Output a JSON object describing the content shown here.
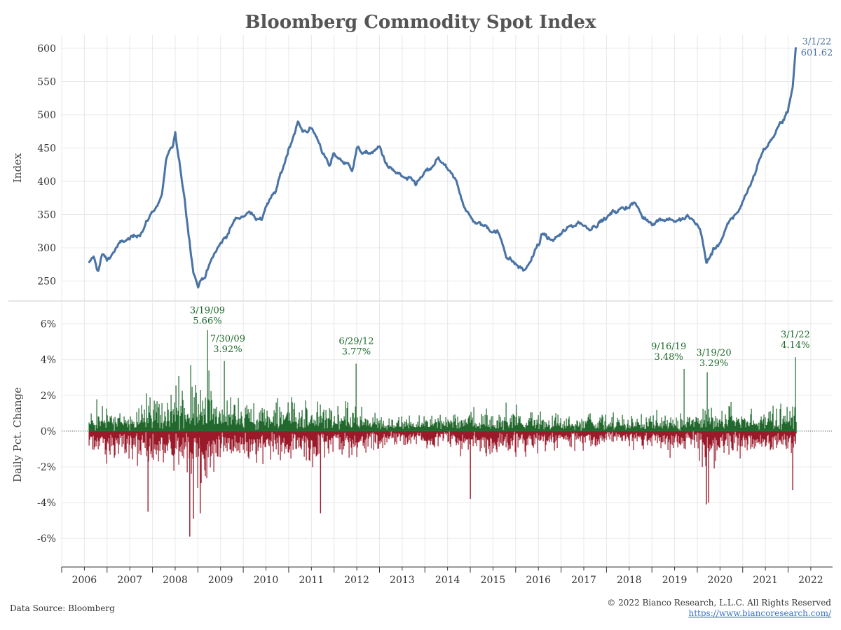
{
  "title": "Bloomberg Commodity Spot Index",
  "colors": {
    "line": "#4a73a5",
    "up": "#1e6a2c",
    "down": "#9b1a2a",
    "annotation": "#1e6a2c"
  },
  "footer": {
    "source": "Data Source: Bloomberg",
    "copyright": "© 2022 Bianco Research, L.L.C. All Rights Reserved",
    "url": "https://www.biancoresearch.com/"
  },
  "chart_data": [
    {
      "type": "line",
      "name": "index-panel",
      "ylabel": "Index",
      "ylim": [
        220,
        620
      ],
      "yticks": [
        250,
        300,
        350,
        400,
        450,
        500,
        550,
        600
      ],
      "series": [
        {
          "name": "Bloomberg Commodity Spot Index",
          "x": [
            2006.6,
            2006.7,
            2006.8,
            2006.9,
            2007.0,
            2007.2,
            2007.4,
            2007.6,
            2007.8,
            2008.0,
            2008.2,
            2008.3,
            2008.45,
            2008.5,
            2008.6,
            2008.7,
            2008.8,
            2008.9,
            2009.0,
            2009.1,
            2009.2,
            2009.4,
            2009.6,
            2009.8,
            2010.0,
            2010.2,
            2010.4,
            2010.5,
            2010.7,
            2010.9,
            2011.0,
            2011.1,
            2011.2,
            2011.3,
            2011.5,
            2011.7,
            2011.9,
            2012.0,
            2012.2,
            2012.4,
            2012.5,
            2012.7,
            2012.9,
            2013.0,
            2013.2,
            2013.4,
            2013.6,
            2013.8,
            2014.0,
            2014.2,
            2014.3,
            2014.5,
            2014.7,
            2014.9,
            2015.0,
            2015.2,
            2015.4,
            2015.6,
            2015.8,
            2016.0,
            2016.2,
            2016.4,
            2016.6,
            2016.8,
            2017.0,
            2017.2,
            2017.4,
            2017.6,
            2017.8,
            2018.0,
            2018.2,
            2018.4,
            2018.6,
            2018.8,
            2019.0,
            2019.2,
            2019.4,
            2019.6,
            2019.8,
            2020.0,
            2020.1,
            2020.2,
            2020.3,
            2020.5,
            2020.7,
            2020.9,
            2021.0,
            2021.2,
            2021.4,
            2021.6,
            2021.8,
            2022.0,
            2022.1,
            2022.17
          ],
          "y": [
            275,
            285,
            265,
            290,
            280,
            300,
            310,
            315,
            330,
            355,
            375,
            430,
            450,
            470,
            420,
            380,
            320,
            270,
            245,
            255,
            265,
            295,
            315,
            340,
            350,
            355,
            340,
            365,
            380,
            425,
            450,
            470,
            490,
            475,
            480,
            455,
            420,
            440,
            430,
            420,
            450,
            440,
            445,
            450,
            420,
            410,
            400,
            395,
            410,
            420,
            435,
            415,
            395,
            360,
            345,
            335,
            330,
            325,
            290,
            275,
            265,
            290,
            320,
            310,
            320,
            330,
            340,
            330,
            340,
            345,
            355,
            360,
            370,
            345,
            340,
            345,
            345,
            340,
            345,
            335,
            320,
            275,
            290,
            310,
            335,
            355,
            370,
            400,
            440,
            460,
            480,
            510,
            540,
            601.62
          ]
        }
      ],
      "annotation": {
        "date": "3/1/22",
        "value": "601.62"
      }
    },
    {
      "type": "bar",
      "name": "daily-change-panel",
      "ylabel": "Daily Pct. Change",
      "ylim": [
        -7.6,
        7.2
      ],
      "yticks": [
        -6,
        -4,
        -2,
        0,
        2,
        4,
        6
      ],
      "ytick_labels": [
        "-6%",
        "-4%",
        "-2%",
        "0%",
        "2%",
        "4%",
        "6%"
      ],
      "volatility_regimes": {
        "x": [
          2006.6,
          2007.5,
          2008.0,
          2008.5,
          2008.8,
          2009.0,
          2009.5,
          2010.0,
          2010.5,
          2011.0,
          2011.5,
          2012.0,
          2012.5,
          2013.0,
          2013.5,
          2014.0,
          2014.5,
          2015.0,
          2015.5,
          2016.0,
          2016.5,
          2017.0,
          2018.0,
          2019.0,
          2019.5,
          2020.0,
          2020.2,
          2020.4,
          2020.6,
          2021.0,
          2021.5,
          2022.0,
          2022.17
        ],
        "typical_abs_pct": [
          0.9,
          0.9,
          1.1,
          1.3,
          2.0,
          1.9,
          1.3,
          1.1,
          1.05,
          1.1,
          1.1,
          0.95,
          0.9,
          0.65,
          0.55,
          0.55,
          0.55,
          0.8,
          0.85,
          0.85,
          0.75,
          0.65,
          0.6,
          0.65,
          0.65,
          0.65,
          1.4,
          1.0,
          0.8,
          0.8,
          0.8,
          0.9,
          1.0
        ]
      },
      "peaks": [
        {
          "date": "3/19/09",
          "value": "5.66%",
          "x": 2009.21,
          "y": 5.66
        },
        {
          "date": "7/30/09",
          "value": "3.92%",
          "x": 2009.58,
          "y": 3.92
        },
        {
          "date": "6/29/12",
          "value": "3.77%",
          "x": 2012.49,
          "y": 3.77
        },
        {
          "date": "9/16/19",
          "value": "3.48%",
          "x": 2019.71,
          "y": 3.48
        },
        {
          "date": "3/19/20",
          "value": "3.29%",
          "x": 2020.21,
          "y": 3.29
        },
        {
          "date": "3/1/22",
          "value": "4.14%",
          "x": 2022.16,
          "y": 4.14
        }
      ]
    }
  ],
  "xaxis": {
    "xlim": [
      2006.0,
      2022.98
    ],
    "ticks": [
      2006,
      2007,
      2008,
      2009,
      2010,
      2011,
      2012,
      2013,
      2014,
      2015,
      2016,
      2017,
      2018,
      2019,
      2020,
      2021,
      2022
    ],
    "tick_labels": [
      "2006",
      "2007",
      "2008",
      "2009",
      "2010",
      "2011",
      "2012",
      "2013",
      "2014",
      "2015",
      "2016",
      "2017",
      "2018",
      "2019",
      "2020",
      "2021",
      "2022"
    ]
  }
}
